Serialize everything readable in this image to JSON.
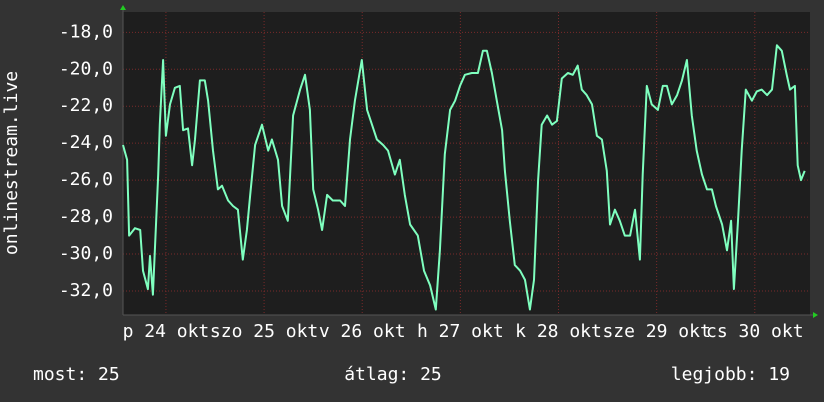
{
  "chart_data": {
    "type": "line",
    "y_label": "onlinestream.live",
    "color": "#7fffbf",
    "grid": true,
    "xlim": [
      0,
      168
    ],
    "ylim": [
      -33.3,
      -16.9
    ],
    "yticks": [
      {
        "value": -18,
        "label": "-18,0"
      },
      {
        "value": -20,
        "label": "-20,0"
      },
      {
        "value": -22,
        "label": "-22,0"
      },
      {
        "value": -24,
        "label": "-24,0"
      },
      {
        "value": -26,
        "label": "-26,0"
      },
      {
        "value": -28,
        "label": "-28,0"
      },
      {
        "value": -30,
        "label": "-30,0"
      },
      {
        "value": -32,
        "label": "-32,0"
      }
    ],
    "xticks": [
      {
        "value": 10.5,
        "label": "p 24 okt"
      },
      {
        "value": 34.5,
        "label": "szo 25 okt"
      },
      {
        "value": 58.5,
        "label": "v 26 okt"
      },
      {
        "value": 82.5,
        "label": "h 27 okt"
      },
      {
        "value": 106.5,
        "label": "k 28 okt"
      },
      {
        "value": 130.5,
        "label": "sze 29 okt"
      },
      {
        "value": 154.5,
        "label": "cs 30 okt"
      }
    ],
    "x": [
      0,
      1.0,
      1.5,
      2.9,
      4.2,
      4.9,
      6.1,
      6.6,
      7.3,
      8.6,
      9.0,
      9.8,
      10.5,
      11.5,
      12.7,
      13.9,
      14.7,
      15.9,
      16.9,
      17.6,
      18.8,
      20.0,
      20.8,
      22.0,
      23.2,
      24.2,
      25.7,
      26.9,
      28.1,
      29.3,
      30.3,
      31.1,
      32.3,
      34.0,
      35.5,
      36.4,
      37.9,
      38.9,
      40.3,
      41.6,
      43.3,
      44.5,
      45.7,
      46.5,
      47.7,
      48.7,
      49.9,
      51.3,
      53.1,
      54.3,
      55.5,
      56.7,
      58.4,
      59.7,
      60.9,
      62.1,
      63.6,
      64.8,
      66.5,
      67.7,
      68.9,
      70.2,
      72.1,
      73.6,
      75.1,
      76.5,
      77.5,
      78.7,
      80.0,
      81.2,
      82.4,
      83.6,
      85.3,
      86.8,
      88.0,
      89.0,
      90.2,
      91.4,
      92.7,
      93.4,
      94.6,
      95.8,
      97.1,
      98.3,
      99.5,
      100.5,
      101.5,
      102.4,
      103.7,
      104.9,
      106.1,
      107.3,
      108.8,
      110.0,
      111.2,
      112.2,
      113.4,
      114.7,
      115.9,
      117.1,
      118.3,
      119.1,
      120.3,
      121.5,
      122.7,
      124.0,
      125.2,
      126.4,
      127.1,
      128.1,
      129.3,
      130.8,
      132.0,
      133.0,
      134.2,
      135.5,
      136.7,
      137.9,
      139.1,
      140.3,
      141.6,
      142.8,
      144.0,
      145.0,
      146.5,
      147.7,
      148.7,
      149.4,
      150.4,
      151.3,
      152.3,
      153.8,
      155.0,
      156.2,
      157.5,
      158.7,
      159.9,
      161.1,
      162.3,
      163.1,
      164.3,
      165.0,
      165.8,
      166.7
    ],
    "values": [
      -24.1,
      -24.9,
      -29.0,
      -28.6,
      -28.7,
      -30.9,
      -31.9,
      -30.1,
      -32.2,
      -25.7,
      -23.0,
      -19.5,
      -23.6,
      -21.9,
      -21.0,
      -20.9,
      -23.3,
      -23.2,
      -25.2,
      -23.8,
      -20.6,
      -20.6,
      -21.7,
      -24.4,
      -26.5,
      -26.3,
      -27.1,
      -27.4,
      -27.6,
      -30.3,
      -28.7,
      -26.8,
      -24.1,
      -23.0,
      -24.4,
      -23.8,
      -24.9,
      -27.4,
      -28.2,
      -22.5,
      -21.1,
      -20.3,
      -22.2,
      -26.5,
      -27.6,
      -28.7,
      -26.8,
      -27.1,
      -27.1,
      -27.4,
      -23.8,
      -21.7,
      -19.5,
      -22.2,
      -23.0,
      -23.8,
      -24.1,
      -24.4,
      -25.7,
      -24.9,
      -26.8,
      -28.4,
      -29.0,
      -30.9,
      -31.7,
      -33.0,
      -29.8,
      -24.6,
      -22.2,
      -21.7,
      -20.9,
      -20.3,
      -20.2,
      -20.2,
      -19.0,
      -19.0,
      -20.2,
      -21.7,
      -23.3,
      -25.5,
      -28.2,
      -30.6,
      -30.9,
      -31.4,
      -33.0,
      -31.4,
      -26.0,
      -23.0,
      -22.5,
      -23.0,
      -22.8,
      -20.5,
      -20.2,
      -20.3,
      -19.8,
      -21.1,
      -21.4,
      -21.9,
      -23.6,
      -23.8,
      -25.5,
      -28.4,
      -27.6,
      -28.2,
      -29.0,
      -29.0,
      -27.6,
      -30.3,
      -25.7,
      -20.9,
      -21.9,
      -22.2,
      -20.9,
      -20.9,
      -21.9,
      -21.4,
      -20.6,
      -19.5,
      -22.5,
      -24.4,
      -25.7,
      -26.5,
      -26.5,
      -27.4,
      -28.4,
      -29.8,
      -28.2,
      -31.9,
      -28.2,
      -24.4,
      -21.1,
      -21.7,
      -21.2,
      -21.1,
      -21.4,
      -21.1,
      -18.7,
      -19.0,
      -20.3,
      -21.1,
      -20.9,
      -25.2,
      -26.0,
      -25.5
    ],
    "annotations": [
      "most: 25",
      "átlag: 25",
      "legjobb: 19"
    ]
  }
}
